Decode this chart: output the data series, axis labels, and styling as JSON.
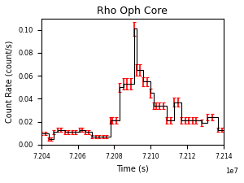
{
  "title": "Rho Oph Core",
  "xlabel": "Time (s)",
  "ylabel": "Count Rate (count/s)",
  "xlim": [
    72040000.0,
    72140000.0
  ],
  "ylim": [
    0.0,
    0.11
  ],
  "yticks": [
    0.0,
    0.02,
    0.04,
    0.06,
    0.08,
    0.1
  ],
  "line_color": "black",
  "error_color": "red",
  "line_width": 0.8,
  "scalex": 10000000.0,
  "time": [
    72040000.0,
    72042500.0,
    72044000.0,
    72045500.0,
    72047000.0,
    72049000.0,
    72051000.0,
    72053000.0,
    72055000.0,
    72057000.0,
    72059000.0,
    72061000.0,
    72062500.0,
    72064000.0,
    72066000.0,
    72068000.0,
    72070000.0,
    72072000.0,
    72074000.0,
    72076000.0,
    72078000.0,
    72079000.0,
    72081000.0,
    72083000.0,
    72085000.0,
    72087000.0,
    72089000.0,
    72091000.0,
    72092500.0,
    72094000.0,
    72096000.0,
    72098000.0,
    72100000.0,
    72101500.0,
    72103000.0,
    72105000.0,
    72107000.0,
    72109000.0,
    72111000.0,
    72113000.0,
    72115000.0,
    72117000.0,
    72119000.0,
    72121000.0,
    72123000.0,
    72125000.0,
    72128000.0,
    72131000.0,
    72134000.0,
    72137000.0,
    72139000.0,
    72141000.0
  ],
  "rate": [
    0.01,
    0.01,
    0.005,
    0.005,
    0.011,
    0.013,
    0.013,
    0.011,
    0.011,
    0.011,
    0.011,
    0.013,
    0.013,
    0.011,
    0.011,
    0.007,
    0.007,
    0.007,
    0.007,
    0.007,
    0.021,
    0.021,
    0.021,
    0.05,
    0.053,
    0.053,
    0.053,
    0.101,
    0.065,
    0.065,
    0.055,
    0.055,
    0.045,
    0.034,
    0.034,
    0.034,
    0.034,
    0.021,
    0.021,
    0.037,
    0.037,
    0.021,
    0.021,
    0.021,
    0.021,
    0.021,
    0.019,
    0.024,
    0.024,
    0.013,
    0.013,
    0.013
  ],
  "error": [
    0.0015,
    0.0015,
    0.0015,
    0.0015,
    0.002,
    0.002,
    0.002,
    0.002,
    0.002,
    0.002,
    0.002,
    0.002,
    0.002,
    0.002,
    0.002,
    0.0015,
    0.0015,
    0.0015,
    0.0015,
    0.0015,
    0.003,
    0.003,
    0.003,
    0.004,
    0.005,
    0.005,
    0.005,
    0.006,
    0.005,
    0.005,
    0.004,
    0.004,
    0.004,
    0.003,
    0.003,
    0.003,
    0.003,
    0.003,
    0.003,
    0.004,
    0.004,
    0.003,
    0.003,
    0.003,
    0.003,
    0.003,
    0.003,
    0.003,
    0.003,
    0.002,
    0.002,
    0.002
  ]
}
